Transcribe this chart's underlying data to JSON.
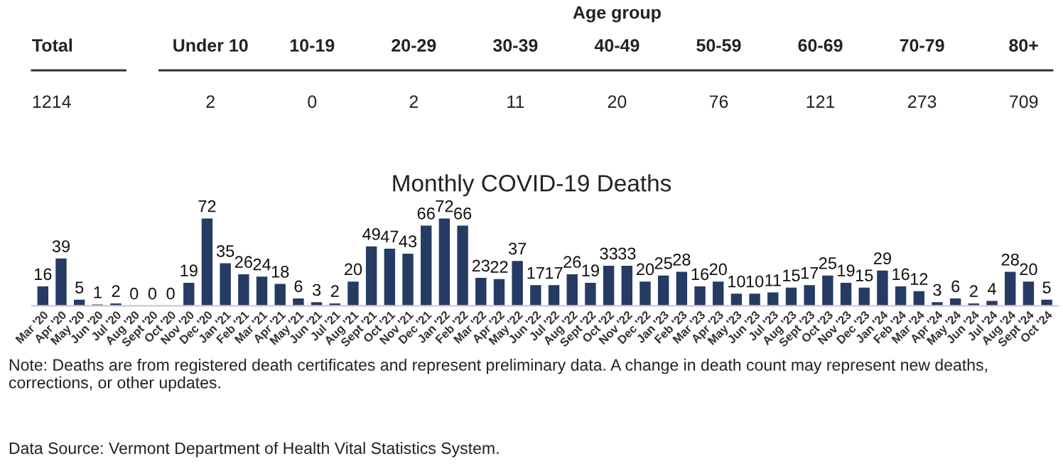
{
  "chart_data": [
    {
      "type": "other",
      "title": "Age group",
      "data_labels": true,
      "categories": [
        "Total",
        "Under 10",
        "10-19",
        "20-29",
        "30-39",
        "40-49",
        "50-59",
        "60-69",
        "70-79",
        "80+"
      ],
      "values": [
        1214,
        2,
        0,
        2,
        11,
        20,
        76,
        121,
        273,
        709
      ]
    },
    {
      "type": "bar",
      "title": "Monthly COVID-19 Deaths",
      "color": "#253b64",
      "data_labels": true,
      "grid": false,
      "legend": false,
      "categories": [
        "Mar '20",
        "Apr '20",
        "May '20",
        "Jun '20",
        "Jul '20",
        "Aug '20",
        "Sept '20",
        "Oct '20",
        "Nov '20",
        "Dec '20",
        "Jan '21",
        "Feb '21",
        "Mar '21",
        "Apr '21",
        "May '21",
        "Jun '21",
        "Jul '21",
        "Aug '21",
        "Sept '21",
        "Oct '21",
        "Nov '21",
        "Dec '21",
        "Jan '22",
        "Feb '22",
        "Mar '22",
        "Apr '22",
        "May '22",
        "Jun '22",
        "Jul '22",
        "Aug '22",
        "Sept '22",
        "Oct '22",
        "Nov '22",
        "Dec '22",
        "Jan '23",
        "Feb '23",
        "Mar '23",
        "Apr '23",
        "May '23",
        "Jun '23",
        "Jul '23",
        "Aug '23",
        "Sept '23",
        "Oct '23",
        "Nov '23",
        "Dec '23",
        "Jan '24",
        "Feb '24",
        "Mar '24",
        "Apr '24",
        "May '24",
        "Jun '24",
        "Jul '24",
        "Aug '24",
        "Sept '24",
        "Oct '24"
      ],
      "values": [
        16,
        39,
        5,
        1,
        2,
        0,
        0,
        0,
        19,
        72,
        35,
        26,
        24,
        18,
        6,
        3,
        2,
        20,
        49,
        47,
        43,
        66,
        72,
        66,
        23,
        22,
        37,
        17,
        17,
        26,
        19,
        33,
        33,
        20,
        25,
        28,
        16,
        20,
        10,
        10,
        11,
        15,
        17,
        25,
        19,
        15,
        29,
        16,
        12,
        3,
        6,
        2,
        4,
        28,
        20,
        5
      ],
      "annotations": [
        "Note: Deaths are from registered death certificates and represent preliminary data. A change in death count may represent new deaths, corrections, or other updates.",
        "Data Source: Vermont Department of Health Vital Statistics System."
      ]
    }
  ]
}
